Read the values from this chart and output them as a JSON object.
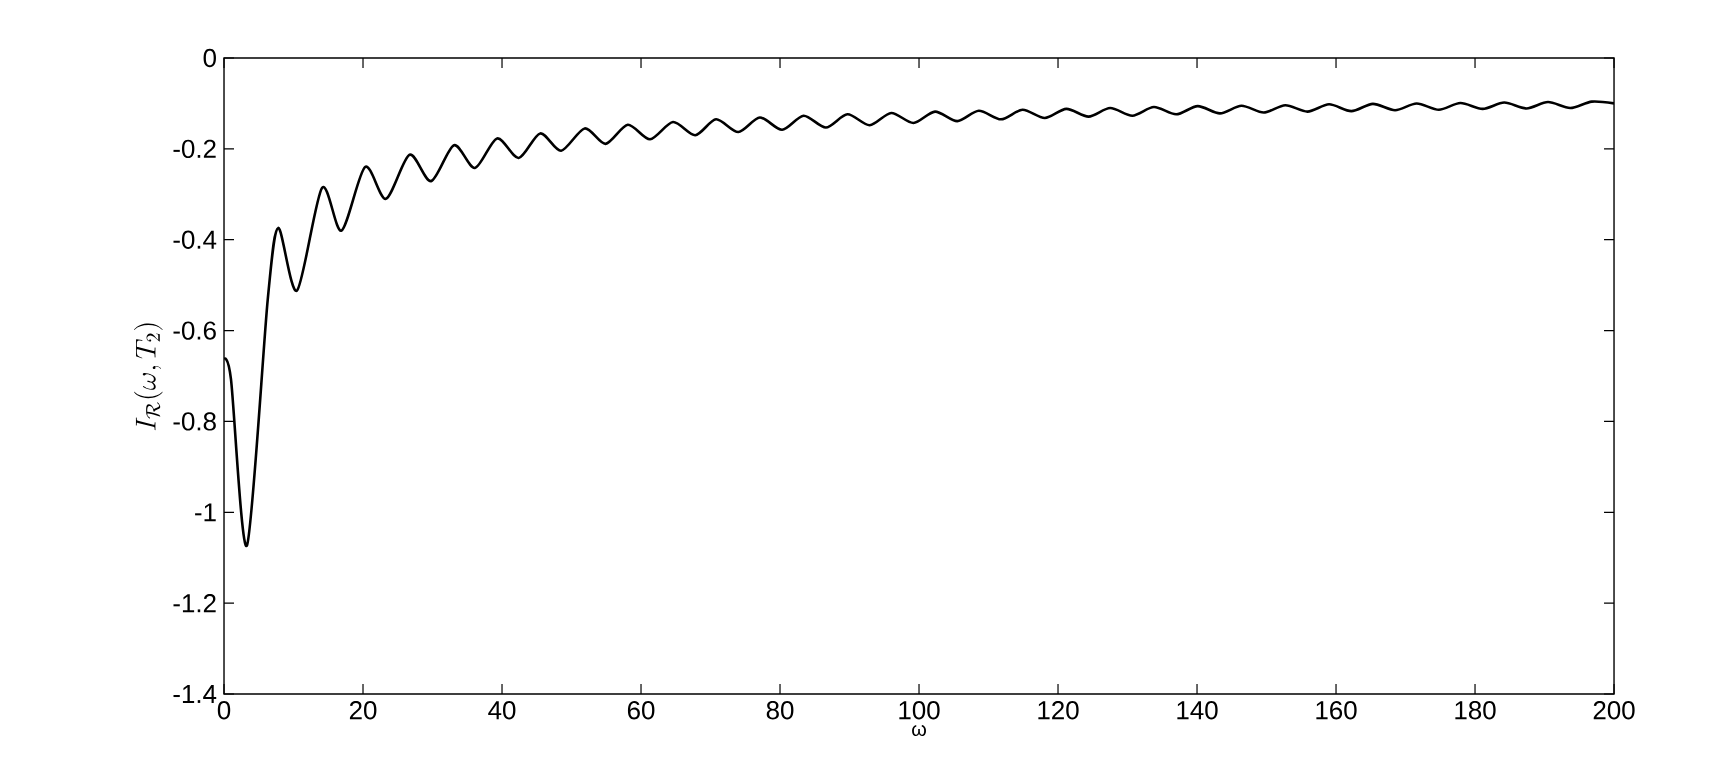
{
  "chart_data": {
    "type": "line",
    "xlabel": "ω",
    "ylabel": "I_{\\mathcal{R}}(\\omega, T_2)",
    "xlim": [
      0,
      200
    ],
    "ylim": [
      -1.4,
      0
    ],
    "xticks": [
      0,
      20,
      40,
      60,
      80,
      100,
      120,
      140,
      160,
      180,
      200
    ],
    "yticks": [
      -1.4,
      -1.2,
      -1,
      -0.8,
      -0.6,
      -0.4,
      -0.2,
      0
    ],
    "grid": false,
    "marker": "none",
    "line_style": "solid",
    "series": [
      {
        "color": "#000000",
        "x": [
          0,
          1,
          3.3,
          6.3,
          7.8,
          10.5,
          14.1,
          16.9,
          20.3,
          23.3,
          26.7,
          29.8,
          33.1,
          36.1,
          39.3,
          42.4,
          45.5,
          48.5,
          51.9,
          54.9,
          58.1,
          61.3,
          64.6,
          67.8,
          70.8,
          74.0,
          77.1,
          80.3,
          83.4,
          86.6,
          89.7,
          92.9,
          96.0,
          99.2,
          102.3,
          105.5,
          108.6,
          111.8,
          114.9,
          118.1,
          121.2,
          124.4,
          127.5,
          130.7,
          133.8,
          137.0,
          140.1,
          143.3,
          146.4,
          149.6,
          152.7,
          155.9,
          159.0,
          162.2,
          165.3,
          168.5,
          171.6,
          174.8,
          177.9,
          181.1,
          184.2,
          187.4,
          190.5,
          193.7,
          196.8,
          200.0
        ],
        "values": [
          -0.663,
          -0.707,
          -1.073,
          -0.53,
          -0.374,
          -0.512,
          -0.286,
          -0.38,
          -0.24,
          -0.31,
          -0.213,
          -0.271,
          -0.192,
          -0.242,
          -0.177,
          -0.22,
          -0.166,
          -0.204,
          -0.155,
          -0.189,
          -0.147,
          -0.179,
          -0.141,
          -0.17,
          -0.135,
          -0.163,
          -0.131,
          -0.158,
          -0.127,
          -0.153,
          -0.124,
          -0.148,
          -0.121,
          -0.143,
          -0.118,
          -0.139,
          -0.116,
          -0.135,
          -0.114,
          -0.132,
          -0.112,
          -0.129,
          -0.11,
          -0.127,
          -0.108,
          -0.124,
          -0.106,
          -0.122,
          -0.105,
          -0.12,
          -0.104,
          -0.118,
          -0.102,
          -0.117,
          -0.101,
          -0.115,
          -0.1,
          -0.114,
          -0.099,
          -0.112,
          -0.098,
          -0.111,
          -0.097,
          -0.11,
          -0.096,
          -0.1
        ]
      }
    ]
  }
}
